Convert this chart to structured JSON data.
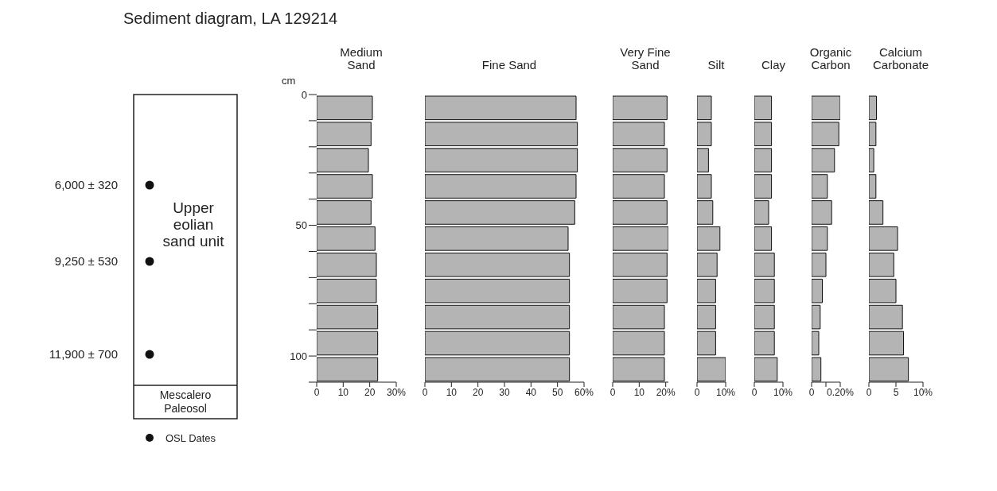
{
  "chart_data": [
    {
      "type": "other",
      "title": "Sediment diagram, LA 129214",
      "annotations": [
        "6,000 ± 320",
        "9,250 ± 530",
        "11,900 ± 700",
        "Upper eolian sand unit",
        "Mescalero Paleosol",
        "OSL Dates"
      ]
    },
    {
      "type": "bar",
      "orientation": "horizontal",
      "title": "Medium Sand",
      "ylabel": "cm",
      "x": [
        5,
        15,
        25,
        35,
        45,
        55,
        65,
        75,
        85,
        95,
        105
      ],
      "values": [
        21,
        20.5,
        19.5,
        21,
        20.5,
        22,
        22.5,
        22.5,
        23,
        23,
        23
      ],
      "color": "#b4b4b4",
      "xlim": [
        0,
        30
      ],
      "xticks": [
        0,
        10,
        20,
        {
          "value": 30,
          "label": "30%"
        }
      ],
      "ylim": [
        110,
        0
      ],
      "yticks": [
        0,
        {
          "value": 10,
          "label": null
        },
        {
          "value": 20,
          "label": null
        },
        {
          "value": 30,
          "label": null
        },
        {
          "value": 40,
          "label": null
        },
        50,
        {
          "value": 60,
          "label": null
        },
        {
          "value": 70,
          "label": null
        },
        {
          "value": 80,
          "label": null
        },
        {
          "value": 90,
          "label": null
        },
        100,
        {
          "value": 110,
          "label": null
        }
      ]
    },
    {
      "type": "bar",
      "orientation": "horizontal",
      "title": "Fine Sand",
      "tick_labels": "x",
      "x": [
        5,
        15,
        25,
        35,
        45,
        55,
        65,
        75,
        85,
        95,
        105
      ],
      "values": [
        57,
        57.5,
        57.5,
        57,
        56.5,
        54,
        54.5,
        54.5,
        54.5,
        54.5,
        54.5
      ],
      "color": "#b4b4b4",
      "xlim": [
        0,
        60
      ],
      "xticks": [
        0,
        10,
        20,
        30,
        40,
        50,
        {
          "value": 60,
          "label": "60%"
        }
      ],
      "ylim": [
        110,
        0
      ]
    },
    {
      "type": "bar",
      "orientation": "horizontal",
      "title": "Very Fine Sand",
      "tick_labels": "x",
      "x": [
        5,
        15,
        25,
        35,
        45,
        55,
        65,
        75,
        85,
        95,
        105
      ],
      "values": [
        20.5,
        19.5,
        20.5,
        19.5,
        20.5,
        21,
        20.5,
        20.5,
        19.5,
        19.5,
        19.5
      ],
      "color": "#b4b4b4",
      "xlim": [
        0,
        21
      ],
      "xticks": [
        0,
        10,
        {
          "value": 20,
          "label": "20%"
        }
      ],
      "ylim": [
        110,
        0
      ]
    },
    {
      "type": "bar",
      "orientation": "horizontal",
      "title": "Silt",
      "tick_labels": "x",
      "x": [
        5,
        15,
        25,
        35,
        45,
        55,
        65,
        75,
        85,
        95,
        105
      ],
      "values": [
        5,
        5,
        4,
        5,
        5.5,
        8,
        7,
        6.5,
        6.5,
        6.5,
        10
      ],
      "color": "#b4b4b4",
      "xlim": [
        0,
        10
      ],
      "xticks": [
        0,
        {
          "value": 10,
          "label": "10%"
        }
      ],
      "ylim": [
        110,
        0
      ]
    },
    {
      "type": "bar",
      "orientation": "horizontal",
      "title": "Clay",
      "tick_labels": "x",
      "x": [
        5,
        15,
        25,
        35,
        45,
        55,
        65,
        75,
        85,
        95,
        105
      ],
      "values": [
        6,
        6,
        6,
        6,
        5,
        6,
        7,
        7,
        7,
        7,
        8
      ],
      "color": "#b4b4b4",
      "xlim": [
        0,
        10
      ],
      "xticks": [
        0,
        {
          "value": 10,
          "label": "10%"
        }
      ],
      "ylim": [
        110,
        0
      ]
    },
    {
      "type": "bar",
      "orientation": "horizontal",
      "title": "Organic Carbon",
      "tick_labels": "x",
      "x": [
        5,
        15,
        25,
        35,
        45,
        55,
        65,
        75,
        85,
        95,
        105
      ],
      "values": [
        0.2,
        0.19,
        0.16,
        0.11,
        0.14,
        0.11,
        0.1,
        0.075,
        0.06,
        0.05,
        0.065
      ],
      "color": "#b4b4b4",
      "xlim": [
        0,
        0.2
      ],
      "xticks": [
        0,
        {
          "value": 0.1,
          "label": null
        },
        {
          "value": 0.2,
          "label": "0.20%"
        }
      ],
      "ylim": [
        110,
        0
      ]
    },
    {
      "type": "bar",
      "orientation": "horizontal",
      "title": "Calcium Carbonate",
      "tick_labels": "x",
      "x": [
        5,
        15,
        25,
        35,
        45,
        55,
        65,
        75,
        85,
        95,
        105
      ],
      "values": [
        1.4,
        1.3,
        0.9,
        1.3,
        2.6,
        5.3,
        4.6,
        5,
        6.2,
        6.4,
        7.3
      ],
      "color": "#b4b4b4",
      "xlim": [
        0,
        10
      ],
      "xticks": [
        0,
        5,
        {
          "value": 10,
          "label": "10%"
        }
      ],
      "ylim": [
        110,
        0
      ]
    }
  ]
}
